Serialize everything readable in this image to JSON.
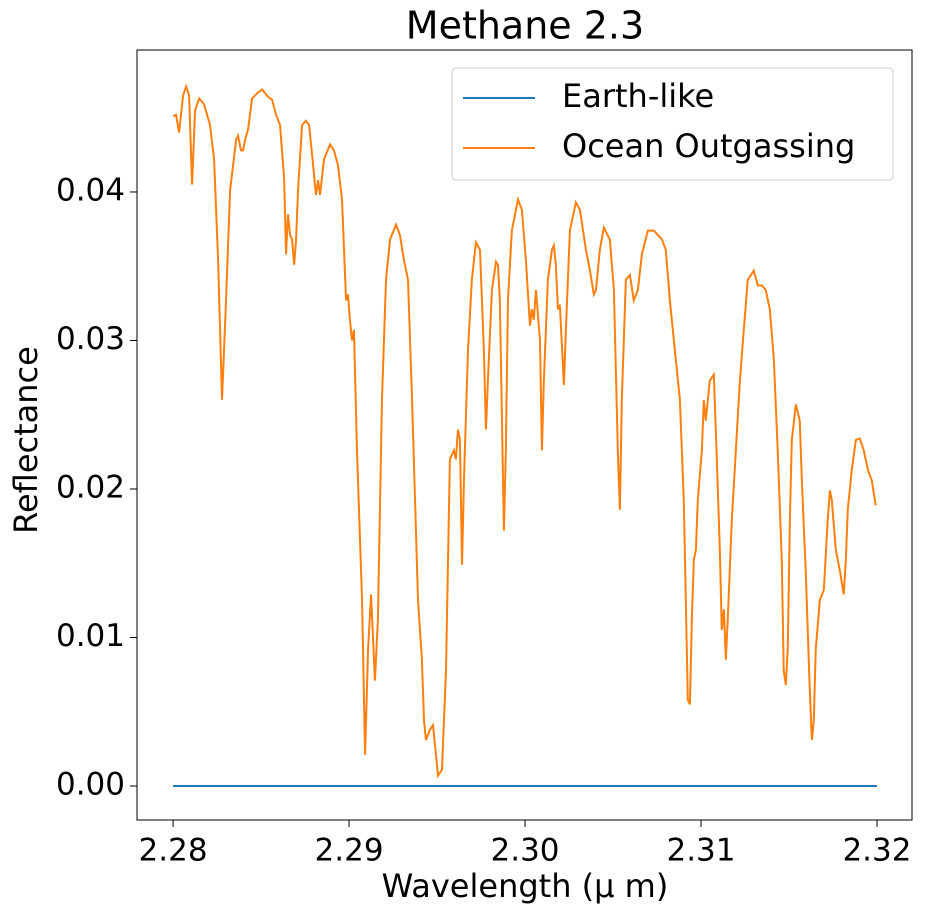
{
  "chart_data": {
    "type": "line",
    "title": "Methane 2.3",
    "x_label": "Wavelength (μ m)",
    "y_label": "Reflectance",
    "xlim": [
      2.27795,
      2.32199
    ],
    "ylim": [
      -0.00229,
      0.04956
    ],
    "xticks": [
      2.28,
      2.29,
      {
        "value": 2.3,
        "label": "2.30"
      },
      2.31,
      2.32
    ],
    "yticks": [
      {
        "value": 0,
        "label": "0.00"
      },
      0.01,
      0.02,
      0.03,
      0.04
    ],
    "legend": "upper right",
    "grid": false,
    "series": [
      {
        "name": "Earth-like",
        "color": "#1f77b4",
        "x": [
          2.28,
          2.32
        ],
        "values": [
          0,
          0
        ]
      },
      {
        "name": "Ocean Outgassing",
        "color": "#ff7f0e",
        "x": [
          2.28,
          2.28017,
          2.28034,
          2.28057,
          2.28074,
          2.28091,
          2.28108,
          2.28125,
          2.28148,
          2.28176,
          2.2821,
          2.28233,
          2.28256,
          2.28278,
          2.28301,
          2.28324,
          2.28358,
          2.28369,
          2.28386,
          2.28398,
          2.28409,
          2.28426,
          2.28449,
          2.28483,
          2.28506,
          2.2854,
          2.28563,
          2.28585,
          2.28608,
          2.28631,
          2.28642,
          2.28653,
          2.28665,
          2.28676,
          2.28688,
          2.28699,
          2.2871,
          2.28733,
          2.28755,
          2.28773,
          2.2879,
          2.28812,
          2.28824,
          2.28835,
          2.28858,
          2.28892,
          2.28914,
          2.28937,
          2.2896,
          2.28983,
          2.28994,
          2.29005,
          2.29017,
          2.29028,
          2.29045,
          2.29074,
          2.29091,
          2.29108,
          2.29125,
          2.29147,
          2.29164,
          2.29187,
          2.2921,
          2.29233,
          2.29267,
          2.29289,
          2.29312,
          2.29335,
          2.29358,
          2.29392,
          2.29414,
          2.29426,
          2.29437,
          2.2946,
          2.29477,
          2.29494,
          2.29505,
          2.29528,
          2.29551,
          2.29573,
          2.29596,
          2.29607,
          2.29619,
          2.2963,
          2.29642,
          2.29653,
          2.29676,
          2.29698,
          2.29721,
          2.29744,
          2.29766,
          2.29778,
          2.29789,
          2.29812,
          2.29835,
          2.29846,
          2.29857,
          2.2988,
          2.29891,
          2.29903,
          2.29925,
          2.2996,
          2.29982,
          2.30005,
          2.30028,
          2.30039,
          2.3005,
          2.30062,
          2.30085,
          2.30096,
          2.30107,
          2.3013,
          2.30153,
          2.30164,
          2.30175,
          2.30187,
          2.30198,
          2.30221,
          2.30232,
          2.30255,
          2.30289,
          2.30312,
          2.30346,
          2.30369,
          2.30391,
          2.30403,
          2.30425,
          2.30448,
          2.30482,
          2.30505,
          2.30528,
          2.30539,
          2.3055,
          2.30573,
          2.30596,
          2.30618,
          2.30641,
          2.30664,
          2.30698,
          2.30732,
          2.30755,
          2.30778,
          2.308,
          2.30823,
          2.30857,
          2.3088,
          2.30902,
          2.30925,
          2.30937,
          2.30948,
          2.30959,
          2.30971,
          2.30982,
          2.31005,
          2.31016,
          2.31027,
          2.3105,
          2.31073,
          2.31084,
          2.31107,
          2.31118,
          2.3113,
          2.31141,
          2.31152,
          2.31175,
          2.31198,
          2.31221,
          2.31243,
          2.31266,
          2.313,
          2.31323,
          2.31346,
          2.31368,
          2.31391,
          2.31414,
          2.31436,
          2.31459,
          2.3147,
          2.31482,
          2.31493,
          2.31505,
          2.31516,
          2.31539,
          2.31561,
          2.31573,
          2.31595,
          2.31618,
          2.3163,
          2.31641,
          2.31652,
          2.31675,
          2.31698,
          2.3172,
          2.31732,
          2.31743,
          2.31766,
          2.31789,
          2.31811,
          2.31823,
          2.31834,
          2.31857,
          2.3188,
          2.31902,
          2.31925,
          2.31948,
          2.3197,
          2.31993
        ],
        "values": [
          0.0451,
          0.0452,
          0.044,
          0.0465,
          0.0471,
          0.0465,
          0.0405,
          0.0455,
          0.0463,
          0.0459,
          0.0445,
          0.0422,
          0.0354,
          0.026,
          0.0327,
          0.0401,
          0.0435,
          0.0438,
          0.0428,
          0.0428,
          0.0435,
          0.0442,
          0.0463,
          0.0467,
          0.0469,
          0.0464,
          0.0462,
          0.0452,
          0.0445,
          0.0409,
          0.0358,
          0.0385,
          0.0371,
          0.0368,
          0.0351,
          0.0368,
          0.0401,
          0.0445,
          0.0448,
          0.0445,
          0.0425,
          0.0398,
          0.0408,
          0.0398,
          0.0422,
          0.0432,
          0.0428,
          0.0418,
          0.0395,
          0.0327,
          0.0331,
          0.0314,
          0.03,
          0.0307,
          0.0226,
          0.0125,
          0.0021,
          0.0092,
          0.0129,
          0.0071,
          0.0112,
          0.026,
          0.0341,
          0.0368,
          0.0378,
          0.0371,
          0.0354,
          0.0341,
          0.026,
          0.0125,
          0.0085,
          0.0044,
          0.0031,
          0.0038,
          0.0041,
          0.0021,
          0.0007,
          0.0011,
          0.0078,
          0.022,
          0.0226,
          0.022,
          0.024,
          0.0233,
          0.0149,
          0.0206,
          0.0294,
          0.0341,
          0.0366,
          0.0361,
          0.0294,
          0.024,
          0.0273,
          0.0334,
          0.0353,
          0.0351,
          0.0327,
          0.0172,
          0.0226,
          0.0327,
          0.0374,
          0.0395,
          0.0388,
          0.0354,
          0.031,
          0.0321,
          0.0314,
          0.0334,
          0.03,
          0.0226,
          0.0273,
          0.0341,
          0.0361,
          0.0364,
          0.0351,
          0.0321,
          0.0324,
          0.027,
          0.0307,
          0.0374,
          0.0393,
          0.0388,
          0.0361,
          0.0347,
          0.0331,
          0.0334,
          0.0361,
          0.0376,
          0.0368,
          0.0334,
          0.0223,
          0.0186,
          0.026,
          0.0341,
          0.0344,
          0.0327,
          0.0334,
          0.0358,
          0.0374,
          0.0374,
          0.0371,
          0.0368,
          0.0361,
          0.0327,
          0.0287,
          0.026,
          0.0193,
          0.0058,
          0.0055,
          0.0112,
          0.0152,
          0.0159,
          0.0193,
          0.0226,
          0.026,
          0.0246,
          0.0273,
          0.0277,
          0.024,
          0.0159,
          0.0105,
          0.0119,
          0.0085,
          0.0112,
          0.0179,
          0.0226,
          0.0273,
          0.0307,
          0.0341,
          0.0347,
          0.0337,
          0.0337,
          0.0334,
          0.0321,
          0.0287,
          0.0226,
          0.0152,
          0.0078,
          0.0068,
          0.0092,
          0.0179,
          0.0233,
          0.0257,
          0.0246,
          0.0206,
          0.0145,
          0.0065,
          0.0031,
          0.0044,
          0.0092,
          0.0125,
          0.0132,
          0.0179,
          0.0199,
          0.0193,
          0.0159,
          0.0145,
          0.0129,
          0.0152,
          0.0186,
          0.0213,
          0.0233,
          0.0234,
          0.0226,
          0.0213,
          0.0206,
          0.0189
        ]
      }
    ]
  }
}
